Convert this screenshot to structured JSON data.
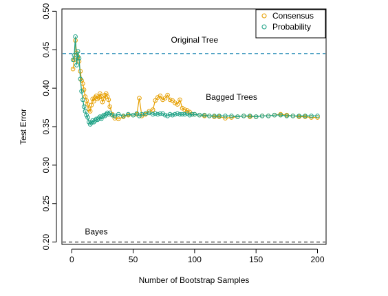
{
  "chart_data": {
    "type": "line",
    "xlabel": "Number of Bootstrap Samples",
    "ylabel": "Test Error",
    "xlim": [
      -8,
      207
    ],
    "ylim": [
      0.197,
      0.503
    ],
    "xticks": [
      0,
      50,
      100,
      150,
      200
    ],
    "yticks": [
      0.2,
      0.25,
      0.3,
      0.35,
      0.4,
      0.45,
      0.5
    ],
    "xtick_labels": [
      "0",
      "50",
      "100",
      "150",
      "200"
    ],
    "ytick_labels": [
      "0.20",
      "0.25",
      "0.30",
      "0.35",
      "0.40",
      "0.45",
      "0.50"
    ],
    "grid": false,
    "legend_position": "top-right",
    "series": [
      {
        "name": "Consensus",
        "color": "#E69F00",
        "marker": "open-circle",
        "keypoints": [
          [
            1,
            0.425
          ],
          [
            2,
            0.437
          ],
          [
            3,
            0.462
          ],
          [
            4,
            0.446
          ],
          [
            5,
            0.441
          ],
          [
            6,
            0.435
          ],
          [
            7,
            0.422
          ],
          [
            8,
            0.41
          ],
          [
            9,
            0.406
          ],
          [
            10,
            0.398
          ],
          [
            11,
            0.389
          ],
          [
            12,
            0.384
          ],
          [
            13,
            0.379
          ],
          [
            14,
            0.373
          ],
          [
            15,
            0.37
          ],
          [
            16,
            0.378
          ],
          [
            17,
            0.386
          ],
          [
            18,
            0.383
          ],
          [
            19,
            0.388
          ],
          [
            20,
            0.39
          ],
          [
            21,
            0.386
          ],
          [
            22,
            0.388
          ],
          [
            23,
            0.393
          ],
          [
            24,
            0.389
          ],
          [
            25,
            0.382
          ],
          [
            26,
            0.386
          ],
          [
            27,
            0.391
          ],
          [
            28,
            0.393
          ],
          [
            29,
            0.389
          ],
          [
            30,
            0.385
          ],
          [
            31,
            0.376
          ],
          [
            33,
            0.366
          ],
          [
            35,
            0.361
          ],
          [
            38,
            0.36
          ],
          [
            42,
            0.363
          ],
          [
            46,
            0.365
          ],
          [
            50,
            0.365
          ],
          [
            53,
            0.366
          ],
          [
            55,
            0.387
          ],
          [
            57,
            0.364
          ],
          [
            60,
            0.366
          ],
          [
            63,
            0.37
          ],
          [
            66,
            0.372
          ],
          [
            68,
            0.384
          ],
          [
            70,
            0.388
          ],
          [
            72,
            0.39
          ],
          [
            74,
            0.385
          ],
          [
            76,
            0.387
          ],
          [
            78,
            0.391
          ],
          [
            80,
            0.385
          ],
          [
            82,
            0.384
          ],
          [
            84,
            0.381
          ],
          [
            86,
            0.379
          ],
          [
            88,
            0.385
          ],
          [
            90,
            0.374
          ],
          [
            92,
            0.372
          ],
          [
            94,
            0.371
          ],
          [
            96,
            0.369
          ],
          [
            98,
            0.366
          ],
          [
            100,
            0.366
          ],
          [
            104,
            0.365
          ],
          [
            108,
            0.364
          ],
          [
            112,
            0.364
          ],
          [
            116,
            0.363
          ],
          [
            120,
            0.363
          ],
          [
            125,
            0.361
          ],
          [
            130,
            0.362
          ],
          [
            135,
            0.363
          ],
          [
            140,
            0.364
          ],
          [
            145,
            0.363
          ],
          [
            150,
            0.363
          ],
          [
            155,
            0.364
          ],
          [
            160,
            0.364
          ],
          [
            165,
            0.365
          ],
          [
            170,
            0.366
          ],
          [
            175,
            0.365
          ],
          [
            180,
            0.364
          ],
          [
            185,
            0.363
          ],
          [
            190,
            0.363
          ],
          [
            195,
            0.362
          ],
          [
            200,
            0.362
          ]
        ]
      },
      {
        "name": "Probability",
        "color": "#1FA286",
        "marker": "open-circle",
        "keypoints": [
          [
            1,
            0.437
          ],
          [
            2,
            0.443
          ],
          [
            3,
            0.467
          ],
          [
            4,
            0.43
          ],
          [
            5,
            0.448
          ],
          [
            6,
            0.439
          ],
          [
            7,
            0.412
          ],
          [
            8,
            0.396
          ],
          [
            9,
            0.385
          ],
          [
            10,
            0.376
          ],
          [
            11,
            0.37
          ],
          [
            12,
            0.365
          ],
          [
            13,
            0.362
          ],
          [
            14,
            0.356
          ],
          [
            15,
            0.353
          ],
          [
            16,
            0.355
          ],
          [
            17,
            0.358
          ],
          [
            18,
            0.356
          ],
          [
            19,
            0.358
          ],
          [
            20,
            0.36
          ],
          [
            21,
            0.359
          ],
          [
            22,
            0.361
          ],
          [
            23,
            0.363
          ],
          [
            24,
            0.36
          ],
          [
            25,
            0.363
          ],
          [
            26,
            0.365
          ],
          [
            27,
            0.364
          ],
          [
            28,
            0.366
          ],
          [
            29,
            0.368
          ],
          [
            30,
            0.366
          ],
          [
            31,
            0.368
          ],
          [
            33,
            0.365
          ],
          [
            35,
            0.364
          ],
          [
            38,
            0.366
          ],
          [
            42,
            0.364
          ],
          [
            46,
            0.366
          ],
          [
            50,
            0.365
          ],
          [
            53,
            0.367
          ],
          [
            55,
            0.364
          ],
          [
            57,
            0.366
          ],
          [
            60,
            0.367
          ],
          [
            63,
            0.368
          ],
          [
            66,
            0.366
          ],
          [
            68,
            0.367
          ],
          [
            70,
            0.366
          ],
          [
            72,
            0.367
          ],
          [
            74,
            0.367
          ],
          [
            76,
            0.365
          ],
          [
            78,
            0.364
          ],
          [
            80,
            0.366
          ],
          [
            82,
            0.365
          ],
          [
            84,
            0.366
          ],
          [
            86,
            0.367
          ],
          [
            88,
            0.366
          ],
          [
            90,
            0.366
          ],
          [
            92,
            0.366
          ],
          [
            94,
            0.367
          ],
          [
            96,
            0.365
          ],
          [
            98,
            0.366
          ],
          [
            100,
            0.366
          ],
          [
            104,
            0.365
          ],
          [
            108,
            0.365
          ],
          [
            112,
            0.364
          ],
          [
            116,
            0.364
          ],
          [
            120,
            0.364
          ],
          [
            125,
            0.364
          ],
          [
            130,
            0.364
          ],
          [
            135,
            0.363
          ],
          [
            140,
            0.364
          ],
          [
            145,
            0.364
          ],
          [
            150,
            0.363
          ],
          [
            155,
            0.364
          ],
          [
            160,
            0.364
          ],
          [
            165,
            0.365
          ],
          [
            170,
            0.365
          ],
          [
            175,
            0.364
          ],
          [
            180,
            0.364
          ],
          [
            185,
            0.364
          ],
          [
            190,
            0.364
          ],
          [
            195,
            0.364
          ],
          [
            200,
            0.364
          ]
        ]
      }
    ],
    "reference_lines": [
      {
        "label": "Original Tree",
        "y": 0.445,
        "color": "#2A8FB8",
        "style": "dashed"
      },
      {
        "label": "Bayes",
        "y": 0.2,
        "color": "#333333",
        "style": "dashed"
      }
    ],
    "annotations": [
      {
        "text": "Original Tree",
        "x": 100,
        "y": 0.459
      },
      {
        "text": "Bagged Trees",
        "x": 130,
        "y": 0.385
      },
      {
        "text": "Bayes",
        "x": 20,
        "y": 0.21
      }
    ]
  }
}
